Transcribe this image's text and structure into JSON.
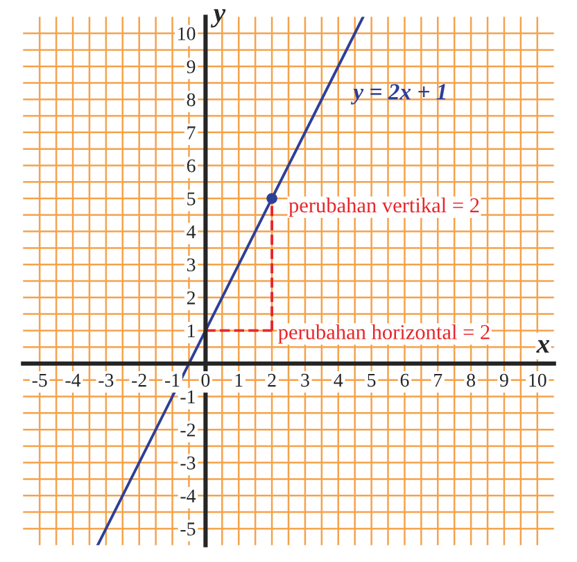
{
  "chart_data": {
    "type": "line",
    "xlabel": "x",
    "ylabel": "y",
    "series": [
      {
        "name": "y = 2x + 1",
        "color": "#2e3f96",
        "x": [
          -3.25,
          4.75
        ],
        "values": [
          -5.5,
          10.5
        ],
        "line_style": "solid"
      },
      {
        "type": "scatter",
        "color": "#2e3f96",
        "x": [
          2
        ],
        "values": [
          5
        ],
        "marker": "circle"
      },
      {
        "type": "line",
        "color": "#e8262a",
        "x": [
          0,
          2
        ],
        "values": [
          1,
          1
        ],
        "line_style": "dashed"
      },
      {
        "type": "line",
        "color": "#e8262a",
        "x": [
          2,
          2
        ],
        "values": [
          1,
          5
        ],
        "line_style": "dashed"
      }
    ],
    "annotations": [
      "perubahan vertikal = 2",
      "perubahan horizontal = 2"
    ],
    "xlim": [
      -5.5,
      10.5
    ],
    "ylim": [
      -5.5,
      10.5
    ],
    "xticks": [
      -5,
      {
        "value": -4.5,
        "label": null
      },
      -4,
      {
        "value": -3.5,
        "label": null
      },
      -3,
      {
        "value": -2.5,
        "label": null
      },
      -2,
      {
        "value": -1.5,
        "label": null
      },
      -1,
      {
        "value": -0.5,
        "label": null
      },
      0,
      {
        "value": 0.5,
        "label": null
      },
      1,
      {
        "value": 1.5,
        "label": null
      },
      2,
      {
        "value": 2.5,
        "label": null
      },
      3,
      {
        "value": 3.5,
        "label": null
      },
      4,
      {
        "value": 4.5,
        "label": null
      },
      5,
      {
        "value": 5.5,
        "label": null
      },
      6,
      {
        "value": 6.5,
        "label": null
      },
      7,
      {
        "value": 7.5,
        "label": null
      },
      8,
      {
        "value": 8.5,
        "label": null
      },
      9,
      {
        "value": 9.5,
        "label": null
      },
      10
    ],
    "yticks": [
      -5,
      {
        "value": -4.5,
        "label": null
      },
      -4,
      {
        "value": -3.5,
        "label": null
      },
      -3,
      {
        "value": -2.5,
        "label": null
      },
      -2,
      {
        "value": -1.5,
        "label": null
      },
      -1,
      {
        "value": -0.5,
        "label": null
      },
      {
        "value": 0.5,
        "label": null
      },
      1,
      {
        "value": 1.5,
        "label": null
      },
      2,
      {
        "value": 2.5,
        "label": null
      },
      3,
      {
        "value": 3.5,
        "label": null
      },
      4,
      {
        "value": 4.5,
        "label": null
      },
      5,
      {
        "value": 5.5,
        "label": null
      },
      6,
      {
        "value": 6.5,
        "label": null
      },
      7,
      {
        "value": 7.5,
        "label": null
      },
      8,
      {
        "value": 8.5,
        "label": null
      },
      9,
      {
        "value": 9.5,
        "label": null
      },
      10
    ],
    "grid": true,
    "legend": false
  }
}
